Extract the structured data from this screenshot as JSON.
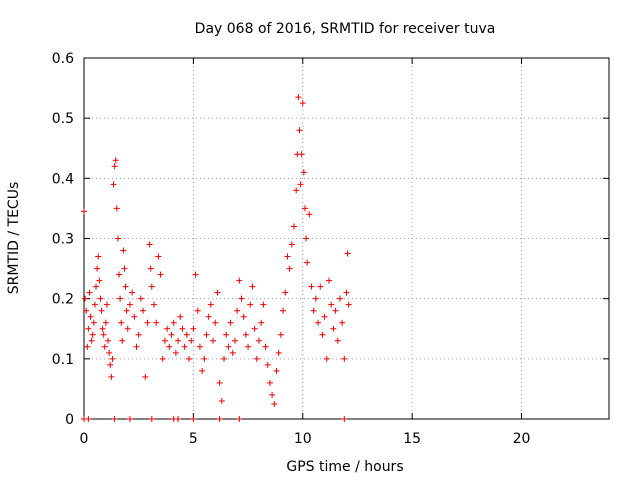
{
  "chart_data": {
    "type": "scatter",
    "title": "Day 068 of 2016, SRMTID for receiver tuva",
    "xlabel": "GPS time / hours",
    "ylabel": "SRMTID / TECUs",
    "xlim": [
      0,
      24
    ],
    "ylim": [
      0,
      0.6
    ],
    "x_ticks": [
      0,
      5,
      10,
      15,
      20
    ],
    "x_tick_labels": [
      "0",
      "5",
      "10",
      "15",
      "20"
    ],
    "y_ticks": [
      0,
      0.1,
      0.2,
      0.3,
      0.4,
      0.5,
      0.6
    ],
    "y_tick_labels": [
      "0",
      "0.1",
      "0.2",
      "0.3",
      "0.4",
      "0.5",
      "0.6"
    ],
    "grid": true,
    "marker": "plus",
    "color": "#ee0000",
    "series": [
      {
        "name": "SRMTID",
        "points": [
          [
            0.0,
            0.345
          ],
          [
            0.05,
            0.2
          ],
          [
            0.1,
            0.18
          ],
          [
            0.15,
            0.12
          ],
          [
            0.2,
            0.15
          ],
          [
            0.25,
            0.21
          ],
          [
            0.3,
            0.17
          ],
          [
            0.35,
            0.13
          ],
          [
            0.4,
            0.14
          ],
          [
            0.45,
            0.16
          ],
          [
            0.5,
            0.19
          ],
          [
            0.55,
            0.22
          ],
          [
            0.6,
            0.25
          ],
          [
            0.65,
            0.27
          ],
          [
            0.7,
            0.23
          ],
          [
            0.75,
            0.2
          ],
          [
            0.8,
            0.18
          ],
          [
            0.85,
            0.15
          ],
          [
            0.9,
            0.14
          ],
          [
            0.95,
            0.12
          ],
          [
            1.0,
            0.16
          ],
          [
            1.05,
            0.19
          ],
          [
            1.1,
            0.13
          ],
          [
            1.15,
            0.11
          ],
          [
            1.2,
            0.09
          ],
          [
            1.25,
            0.07
          ],
          [
            1.3,
            0.1
          ],
          [
            1.35,
            0.39
          ],
          [
            1.4,
            0.42
          ],
          [
            1.45,
            0.43
          ],
          [
            1.5,
            0.35
          ],
          [
            1.55,
            0.3
          ],
          [
            1.6,
            0.24
          ],
          [
            1.65,
            0.2
          ],
          [
            1.7,
            0.16
          ],
          [
            1.75,
            0.13
          ],
          [
            1.8,
            0.28
          ],
          [
            1.85,
            0.25
          ],
          [
            1.9,
            0.22
          ],
          [
            1.95,
            0.18
          ],
          [
            2.0,
            0.15
          ],
          [
            2.1,
            0.19
          ],
          [
            2.2,
            0.21
          ],
          [
            2.3,
            0.17
          ],
          [
            2.4,
            0.12
          ],
          [
            2.5,
            0.14
          ],
          [
            2.6,
            0.2
          ],
          [
            2.7,
            0.18
          ],
          [
            2.8,
            0.07
          ],
          [
            2.9,
            0.16
          ],
          [
            3.0,
            0.29
          ],
          [
            3.05,
            0.25
          ],
          [
            3.1,
            0.22
          ],
          [
            3.2,
            0.19
          ],
          [
            3.3,
            0.16
          ],
          [
            3.4,
            0.27
          ],
          [
            3.5,
            0.24
          ],
          [
            3.6,
            0.1
          ],
          [
            3.7,
            0.13
          ],
          [
            3.8,
            0.15
          ],
          [
            3.9,
            0.12
          ],
          [
            4.0,
            0.14
          ],
          [
            4.1,
            0.16
          ],
          [
            4.2,
            0.11
          ],
          [
            4.3,
            0.13
          ],
          [
            4.4,
            0.17
          ],
          [
            4.5,
            0.15
          ],
          [
            4.6,
            0.12
          ],
          [
            4.7,
            0.14
          ],
          [
            4.8,
            0.1
          ],
          [
            4.9,
            0.13
          ],
          [
            5.0,
            0.15
          ],
          [
            5.1,
            0.24
          ],
          [
            5.2,
            0.18
          ],
          [
            5.3,
            0.12
          ],
          [
            5.4,
            0.08
          ],
          [
            5.5,
            0.1
          ],
          [
            5.6,
            0.14
          ],
          [
            5.7,
            0.17
          ],
          [
            5.8,
            0.19
          ],
          [
            5.9,
            0.13
          ],
          [
            6.0,
            0.16
          ],
          [
            6.1,
            0.21
          ],
          [
            6.2,
            0.06
          ],
          [
            6.3,
            0.03
          ],
          [
            6.4,
            0.1
          ],
          [
            6.5,
            0.14
          ],
          [
            6.6,
            0.12
          ],
          [
            6.7,
            0.16
          ],
          [
            6.8,
            0.11
          ],
          [
            6.9,
            0.13
          ],
          [
            7.0,
            0.18
          ],
          [
            7.1,
            0.23
          ],
          [
            7.2,
            0.2
          ],
          [
            7.3,
            0.17
          ],
          [
            7.4,
            0.14
          ],
          [
            7.5,
            0.12
          ],
          [
            7.6,
            0.19
          ],
          [
            7.7,
            0.22
          ],
          [
            7.8,
            0.15
          ],
          [
            7.9,
            0.1
          ],
          [
            8.0,
            0.13
          ],
          [
            8.1,
            0.16
          ],
          [
            8.2,
            0.19
          ],
          [
            8.3,
            0.12
          ],
          [
            8.4,
            0.09
          ],
          [
            8.5,
            0.06
          ],
          [
            8.6,
            0.04
          ],
          [
            8.7,
            0.025
          ],
          [
            8.8,
            0.08
          ],
          [
            8.9,
            0.11
          ],
          [
            9.0,
            0.14
          ],
          [
            9.1,
            0.18
          ],
          [
            9.2,
            0.21
          ],
          [
            9.3,
            0.27
          ],
          [
            9.4,
            0.25
          ],
          [
            9.5,
            0.29
          ],
          [
            9.6,
            0.32
          ],
          [
            9.7,
            0.38
          ],
          [
            9.75,
            0.44
          ],
          [
            9.8,
            0.535
          ],
          [
            9.85,
            0.48
          ],
          [
            9.9,
            0.39
          ],
          [
            9.95,
            0.44
          ],
          [
            10.0,
            0.525
          ],
          [
            10.05,
            0.41
          ],
          [
            10.1,
            0.35
          ],
          [
            10.15,
            0.3
          ],
          [
            10.2,
            0.26
          ],
          [
            10.3,
            0.34
          ],
          [
            10.4,
            0.22
          ],
          [
            10.5,
            0.18
          ],
          [
            10.6,
            0.2
          ],
          [
            10.7,
            0.16
          ],
          [
            10.8,
            0.22
          ],
          [
            10.9,
            0.14
          ],
          [
            11.0,
            0.17
          ],
          [
            11.1,
            0.1
          ],
          [
            11.2,
            0.23
          ],
          [
            11.3,
            0.19
          ],
          [
            11.4,
            0.15
          ],
          [
            11.5,
            0.18
          ],
          [
            11.6,
            0.13
          ],
          [
            11.7,
            0.2
          ],
          [
            11.8,
            0.16
          ],
          [
            11.9,
            0.1
          ],
          [
            12.0,
            0.21
          ],
          [
            12.05,
            0.275
          ],
          [
            12.1,
            0.19
          ],
          [
            0.0,
            0.0
          ],
          [
            0.2,
            0.0
          ],
          [
            1.4,
            0.0
          ],
          [
            2.1,
            0.0
          ],
          [
            3.1,
            0.0
          ],
          [
            4.1,
            0.0
          ],
          [
            4.3,
            0.0
          ],
          [
            5.0,
            0.0
          ],
          [
            6.2,
            0.0
          ],
          [
            7.1,
            0.0
          ],
          [
            11.9,
            0.0
          ]
        ]
      }
    ]
  }
}
